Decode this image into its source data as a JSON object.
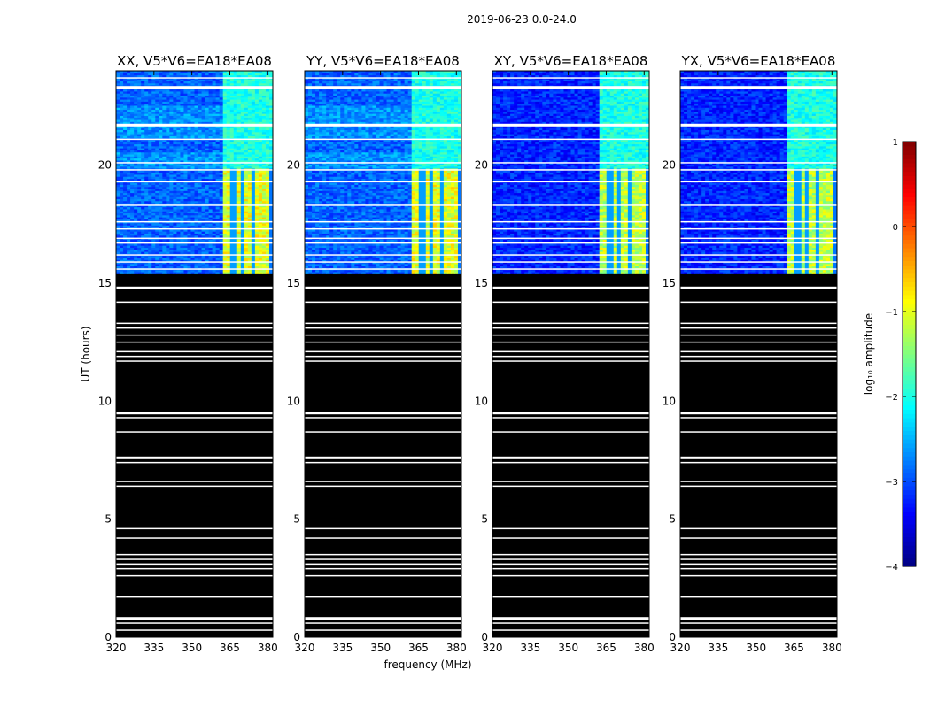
{
  "figure": {
    "suptitle": "2019-06-23 0.0-24.0",
    "xlabel": "frequency (MHz)",
    "ylabel": "UT (hours)",
    "colorbar_label": "log₁₀ amplitude"
  },
  "chart_data": {
    "type": "heatmap",
    "title": "2019-06-23 0.0-24.0",
    "xlabel": "frequency (MHz)",
    "ylabel": "UT (hours)",
    "xlim": [
      320,
      382
    ],
    "ylim": [
      0,
      24
    ],
    "xticks": [
      320,
      335,
      350,
      365,
      380
    ],
    "yticks": [
      0,
      5,
      10,
      15,
      20
    ],
    "panels": [
      {
        "title": "XX, V5*V6=EA18*EA08",
        "pol": "XX",
        "left_band_level": -2.3
      },
      {
        "title": "YY, V5*V6=EA18*EA08",
        "pol": "YY",
        "left_band_level": -2.2
      },
      {
        "title": "XY, V5*V6=EA18*EA08",
        "pol": "XY",
        "left_band_level": -2.8
      },
      {
        "title": "YX, V5*V6=EA18*EA08",
        "pol": "YX",
        "left_band_level": -2.9
      }
    ],
    "data_start_ut": 15.4,
    "no_data_color": "#000000",
    "flagged_color": "#ffffff",
    "flagged_ut_rows": [
      23.3,
      23.7,
      21.7,
      21.1,
      20.1,
      19.8,
      19.3,
      18.3,
      17.6,
      17.3,
      16.9,
      16.7,
      16.2,
      15.9,
      15.6,
      14.8,
      14.2,
      13.3,
      13.1,
      12.8,
      12.5,
      12.1,
      11.9,
      11.7,
      9.5,
      9.3,
      8.7,
      7.6,
      7.4,
      6.6,
      6.4,
      4.6,
      4.2,
      3.5,
      3.3,
      3.1,
      2.9,
      2.6,
      1.7,
      0.8,
      0.6,
      0.3
    ],
    "strong_emission_band_mhz": [
      362,
      380
    ],
    "strong_emission_ut": [
      15.4,
      19.9
    ],
    "colorbar": {
      "range": [
        -4,
        1
      ],
      "ticks": [
        -4,
        -3,
        -2,
        -1,
        0,
        1
      ],
      "tick_labels": [
        "−4",
        "−3",
        "−2",
        "−1",
        "0",
        "1"
      ],
      "colormap": "jet"
    }
  }
}
